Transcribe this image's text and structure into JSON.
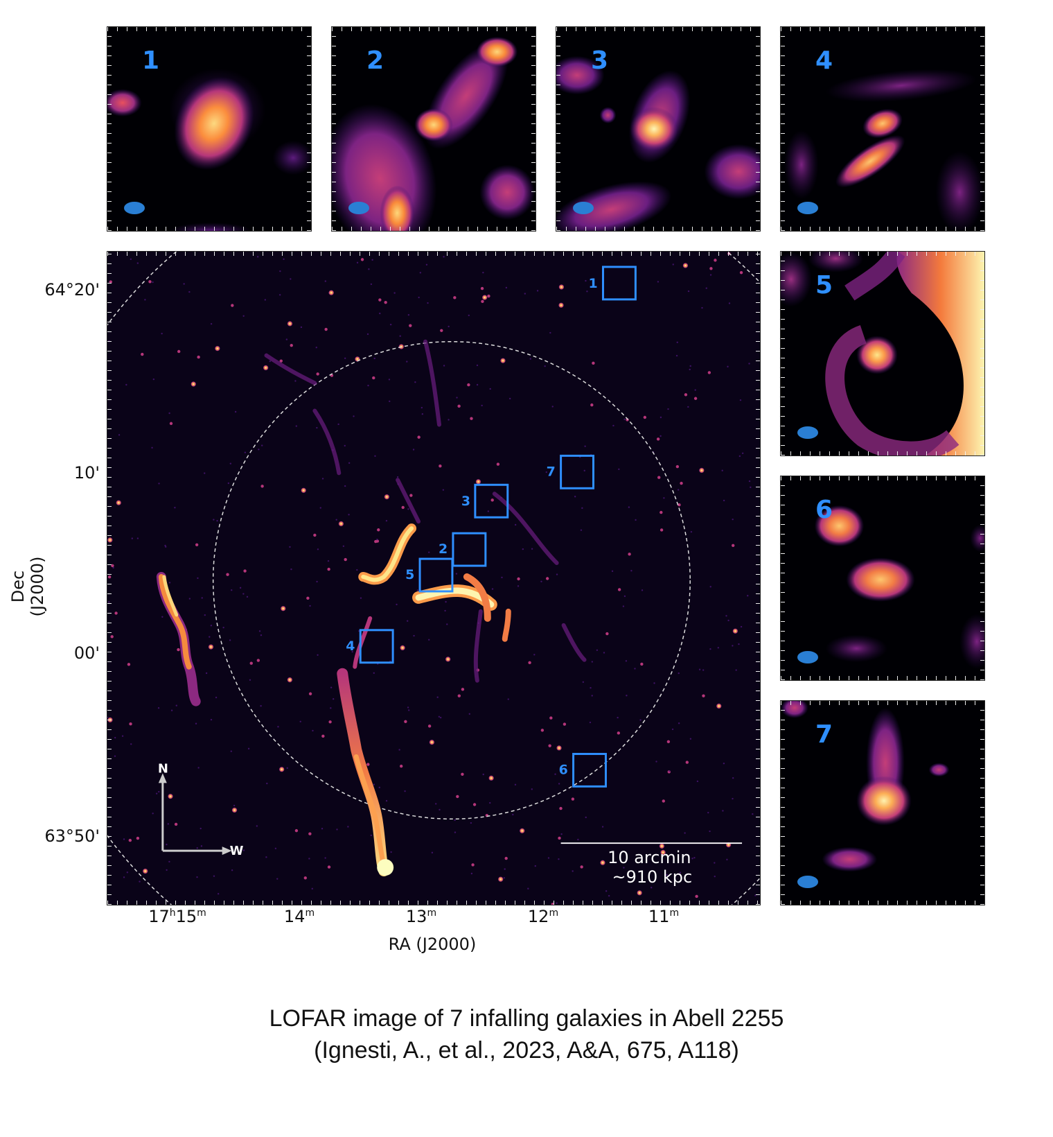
{
  "figure": {
    "caption_line1": "LOFAR image of 7 infalling galaxies in Abell 2255",
    "caption_line2": "(Ignesti, A., et al., 2023, A&A, 675, A118)",
    "xlabel": "RA (J2000)",
    "ylabel": "Dec (J2000)",
    "dec_ticks": [
      "64°20'",
      "10'",
      "00'",
      "63°50'"
    ],
    "ra_ticks": [
      {
        "main": "17",
        "sup1": "h",
        "mid": "15",
        "sup2": "m"
      },
      {
        "main": "14",
        "sup1": "",
        "mid": "",
        "sup2": "m"
      },
      {
        "main": "13",
        "sup1": "",
        "mid": "",
        "sup2": "m"
      },
      {
        "main": "12",
        "sup1": "",
        "mid": "",
        "sup2": "m"
      },
      {
        "main": "11",
        "sup1": "",
        "mid": "",
        "sup2": "m"
      }
    ],
    "scalebar_line1": "10 arcmin",
    "scalebar_line2": "~910 kpc",
    "compass_north": "N",
    "compass_west": "W",
    "box_labels": [
      "1",
      "2",
      "3",
      "4",
      "5",
      "6",
      "7"
    ],
    "inset_labels": [
      "1",
      "2",
      "3",
      "4",
      "5",
      "6",
      "7"
    ]
  },
  "colors": {
    "accent_blue": "#2f8fff",
    "beam_blue": "#2a7fd4",
    "colormap": [
      "#000004",
      "#3b0f70",
      "#8c2981",
      "#de4968",
      "#fe9f6d",
      "#fcfdbf"
    ]
  }
}
